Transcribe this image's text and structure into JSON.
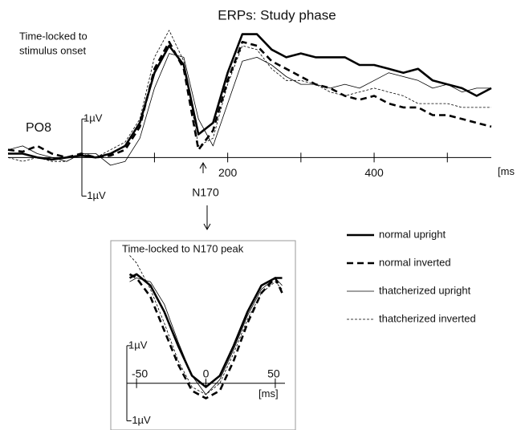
{
  "chart_data": [
    {
      "type": "line",
      "title": "ERPs: Study phase",
      "annotation_lines": [
        "Time-locked to",
        "stimulus onset"
      ],
      "channel": "PO8",
      "marker_label": "N170",
      "x_unit": "[ms",
      "x": [
        -100,
        -80,
        -60,
        -40,
        -20,
        0,
        20,
        40,
        60,
        80,
        100,
        120,
        140,
        160,
        180,
        200,
        220,
        240,
        260,
        280,
        300,
        320,
        340,
        360,
        380,
        400,
        420,
        440,
        460,
        480,
        500,
        520,
        540,
        560
      ],
      "xlim": [
        -100,
        560
      ],
      "ylim": [
        -1.2,
        3.4
      ],
      "xticks": [
        200,
        400
      ],
      "xminor_ticks": [
        100,
        300,
        500
      ],
      "yticks": [
        {
          "value": 1,
          "label": "1µV"
        },
        {
          "value": -1,
          "label": "-1µV"
        }
      ],
      "legend": "right",
      "series": [
        {
          "name": "normal upright",
          "color": "#000000",
          "width": 2.6,
          "dash": "none",
          "values": [
            0.1,
            0.1,
            0,
            -0.05,
            0,
            0.05,
            0,
            0.1,
            0.3,
            0.9,
            2.2,
            2.9,
            2.4,
            0.6,
            0.9,
            2.2,
            3.2,
            3.2,
            2.8,
            2.6,
            2.7,
            2.6,
            2.6,
            2.6,
            2.4,
            2.4,
            2.3,
            2.2,
            2.3,
            2.0,
            1.9,
            1.8,
            1.6,
            1.8
          ]
        },
        {
          "name": "normal inverted",
          "color": "#000000",
          "width": 2.6,
          "dash": "8,5",
          "values": [
            0.2,
            0.15,
            0.3,
            0.1,
            0,
            0.1,
            0,
            0.05,
            0.2,
            0.8,
            2.3,
            3.0,
            2.3,
            0.2,
            0.7,
            2.0,
            3.0,
            2.9,
            2.5,
            2.3,
            2.1,
            1.9,
            1.8,
            1.6,
            1.5,
            1.6,
            1.4,
            1.3,
            1.3,
            1.1,
            1.1,
            1.0,
            0.9,
            0.8
          ]
        },
        {
          "name": "thatcherized upright",
          "color": "#000000",
          "width": 0.8,
          "dash": "none",
          "values": [
            0.2,
            0.3,
            0.1,
            0,
            -0.1,
            0.1,
            0.1,
            -0.2,
            -0.1,
            0.5,
            1.8,
            2.7,
            2.6,
            1.0,
            0.3,
            1.4,
            2.5,
            2.6,
            2.4,
            2.1,
            1.9,
            1.9,
            1.8,
            1.9,
            1.8,
            2.0,
            2.2,
            2.1,
            2.0,
            1.8,
            1.9,
            1.7,
            1.8,
            1.8
          ]
        },
        {
          "name": "thatcherized inverted",
          "color": "#000000",
          "width": 0.8,
          "dash": "3,2",
          "values": [
            0.0,
            -0.1,
            0,
            -0.1,
            -0.1,
            0.1,
            0,
            0.2,
            0.4,
            1.0,
            2.6,
            3.3,
            2.5,
            0.3,
            0.5,
            1.9,
            2.9,
            2.8,
            2.3,
            2.0,
            2.0,
            1.9,
            1.7,
            1.6,
            1.7,
            1.8,
            1.7,
            1.6,
            1.4,
            1.4,
            1.4,
            1.3,
            1.3,
            1.3
          ]
        }
      ]
    },
    {
      "type": "line",
      "title": "Time-locked to N170 peak",
      "x_unit": "[ms]",
      "x": [
        -55,
        -50,
        -40,
        -30,
        -20,
        -10,
        0,
        10,
        20,
        30,
        40,
        50,
        55
      ],
      "xlim": [
        -57,
        57
      ],
      "ylim": [
        -1.2,
        3.6
      ],
      "xticks": [
        -50,
        0,
        50
      ],
      "yticks": [
        {
          "value": 1,
          "label": "1µV"
        },
        {
          "value": -1,
          "label": "-1µV"
        }
      ],
      "series": [
        {
          "color": "#000000",
          "width": 2.6,
          "dash": "none",
          "values": [
            2.8,
            2.9,
            2.6,
            1.9,
            1.0,
            0.2,
            -0.1,
            0.2,
            1.0,
            1.9,
            2.6,
            2.8,
            2.8
          ]
        },
        {
          "color": "#000000",
          "width": 2.6,
          "dash": "8,5",
          "values": [
            2.9,
            2.8,
            2.3,
            1.4,
            0.5,
            -0.2,
            -0.4,
            -0.2,
            0.6,
            1.6,
            2.4,
            2.8,
            2.4
          ]
        },
        {
          "color": "#000000",
          "width": 0.8,
          "dash": "none",
          "values": [
            2.7,
            2.8,
            2.7,
            2.1,
            1.1,
            0.2,
            -0.3,
            0.1,
            0.9,
            1.8,
            2.5,
            2.8,
            2.6
          ]
        },
        {
          "color": "#000000",
          "width": 0.8,
          "dash": "3,2",
          "values": [
            3.4,
            3.2,
            2.5,
            1.6,
            0.6,
            -0.1,
            -0.3,
            0.0,
            0.8,
            1.7,
            2.4,
            2.7,
            2.5
          ]
        }
      ]
    }
  ]
}
